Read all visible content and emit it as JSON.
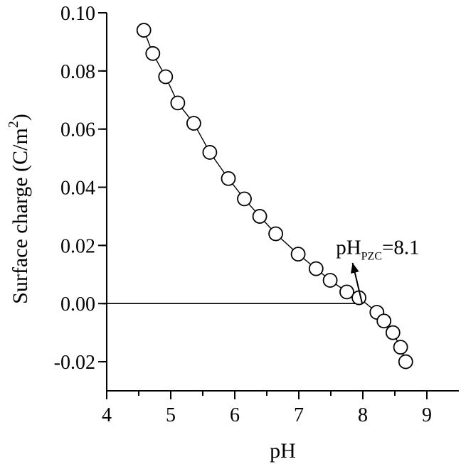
{
  "chart_data": {
    "type": "line",
    "xlabel": "pH",
    "ylabel": {
      "main": "Surface charge (C/m",
      "sup": "2",
      "end": ")"
    },
    "xlim": [
      4,
      9.5
    ],
    "ylim": [
      -0.03,
      0.1
    ],
    "x_ticks": [
      4,
      5,
      6,
      7,
      8,
      9
    ],
    "x_tick_labels": [
      "4",
      "5",
      "6",
      "7",
      "8",
      "9"
    ],
    "y_ticks": [
      -0.02,
      0.0,
      0.02,
      0.04,
      0.06,
      0.08,
      0.1
    ],
    "y_tick_labels": [
      "-0.02",
      "0.00",
      "0.02",
      "0.04",
      "0.06",
      "0.08",
      "0.10"
    ],
    "grid": false,
    "marker": "open-circle",
    "series": [
      {
        "x": [
          4.58,
          4.72,
          4.92,
          5.11,
          5.36,
          5.61,
          5.9,
          6.15,
          6.39,
          6.64,
          6.99,
          7.27,
          7.49,
          7.75,
          7.94,
          8.22,
          8.33,
          8.47,
          8.59,
          8.67
        ],
        "y": [
          0.094,
          0.086,
          0.078,
          0.069,
          0.062,
          0.052,
          0.043,
          0.036,
          0.03,
          0.024,
          0.017,
          0.012,
          0.008,
          0.004,
          0.002,
          -0.003,
          -0.006,
          -0.01,
          -0.015,
          -0.02
        ]
      }
    ],
    "reference_line": {
      "y": 0.0,
      "x_from": 4,
      "x_to": 8.0
    },
    "annotation": {
      "prefix": "pH",
      "subscript": "PZC",
      "suffix": "=8.1",
      "text_anchor": {
        "x": 7.58,
        "y": 0.017
      },
      "arrow_from": {
        "x": 7.99,
        "y": 0.0
      },
      "arrow_to": {
        "x": 7.84,
        "y": 0.014
      }
    }
  }
}
